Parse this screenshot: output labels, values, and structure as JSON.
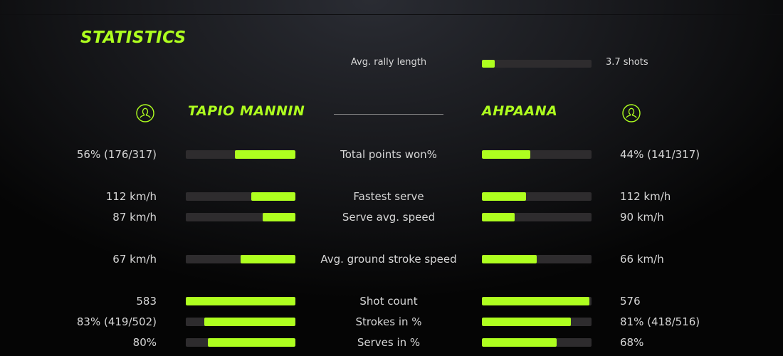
{
  "title": "STATISTICS",
  "colors": {
    "accent": "#aeff1f",
    "track": "#2e2c2e"
  },
  "rally": {
    "label": "Avg. rally length",
    "value": "3.7 shots",
    "fill": 0.12
  },
  "players": {
    "left": {
      "name": "TAPIO MANNIN",
      "icon": "user-circle-icon"
    },
    "right": {
      "name": "AHPAANA",
      "icon": "user-circle-icon"
    }
  },
  "stats": [
    {
      "label": "Total points won%",
      "left": "56% (176/317)",
      "right": "44% (141/317)",
      "left_fill": 0.55,
      "right_fill": 0.44
    },
    {
      "label": "Fastest serve",
      "left": "112 km/h",
      "right": "112 km/h",
      "left_fill": 0.4,
      "right_fill": 0.4
    },
    {
      "label": "Serve avg. speed",
      "left": "87 km/h",
      "right": "90 km/h",
      "left_fill": 0.3,
      "right_fill": 0.3
    },
    {
      "label": "Avg. ground stroke speed",
      "left": "67 km/h",
      "right": "66 km/h",
      "left_fill": 0.5,
      "right_fill": 0.5
    },
    {
      "label": "Shot count",
      "left": "583",
      "right": "576",
      "left_fill": 1.0,
      "right_fill": 0.98
    },
    {
      "label": "Strokes in %",
      "left": "83% (419/502)",
      "right": "81% (418/516)",
      "left_fill": 0.83,
      "right_fill": 0.81
    },
    {
      "label": "Serves in %",
      "left": "80%",
      "right": "68%",
      "left_fill": 0.8,
      "right_fill": 0.68
    }
  ]
}
